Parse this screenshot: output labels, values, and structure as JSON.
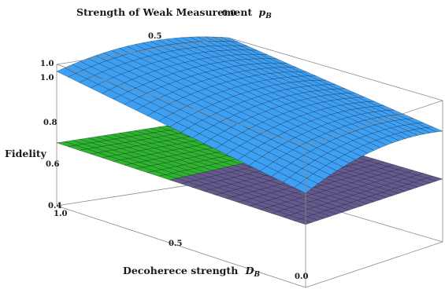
{
  "chart_data": {
    "type": "surface3d",
    "title": "",
    "axes": {
      "pB": {
        "label": "Strength of Weak Measurement",
        "symbol": "p",
        "subscript": "B",
        "range": [
          0.0,
          1.0
        ],
        "ticks": [
          "0.5",
          "0.0"
        ]
      },
      "DB": {
        "label": "Decoherece strength",
        "symbol": "D",
        "subscript": "B",
        "range": [
          0.0,
          1.0
        ],
        "ticks": [
          "1.0",
          "0.5",
          "0.0"
        ]
      },
      "fidelity": {
        "label": "Fidelity",
        "range": [
          0.4,
          1.0
        ],
        "ticks": [
          "0.4",
          "0.6",
          "0.8",
          "1.0"
        ],
        "top_tick": "1.0"
      }
    },
    "surfaces": [
      {
        "colors": {
          "above": "#3ea0f2",
          "below": "#2a3a9a"
        },
        "corners": {
          "pB1_DB1": 0.97,
          "pB0_DB1": 1.0,
          "pB1_DB0": 0.8,
          "pB0_DB0": 0.87
        },
        "curvature": 0.05
      },
      {
        "colors": {
          "above": "#2db52d",
          "below": "#655a8c"
        },
        "value": 0.667
      }
    ],
    "grid": true
  }
}
